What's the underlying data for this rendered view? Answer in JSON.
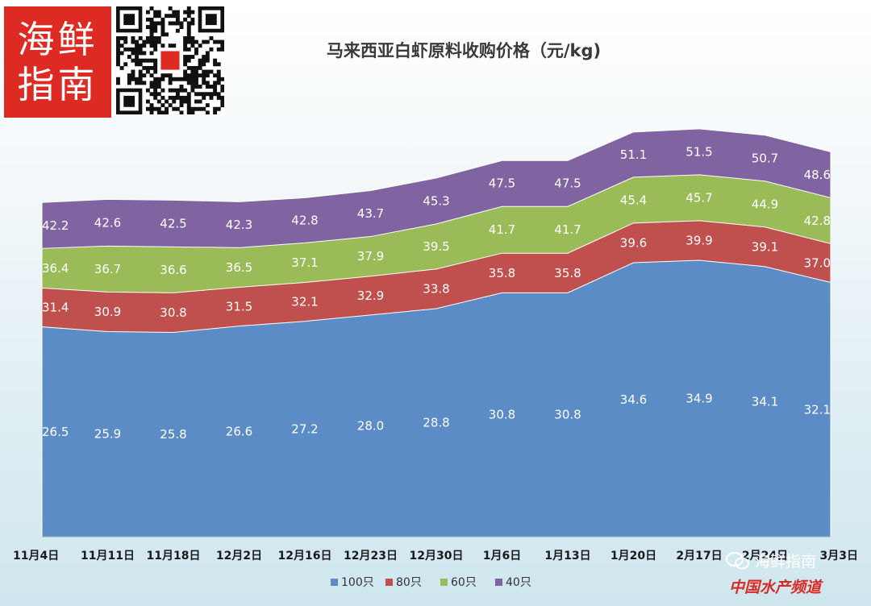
{
  "logo": {
    "line1": "海鲜",
    "line2": "指南"
  },
  "watermark": {
    "name": "海鲜指南",
    "sub": "中国水产频道"
  },
  "chart_data": {
    "type": "area",
    "stacked": false,
    "title": "马来西亚白虾原料收购价格（元/kg)",
    "xlabel": "",
    "ylabel": "",
    "legend_position": "bottom",
    "grid": false,
    "ylim": [
      0,
      52
    ],
    "categories": [
      "11月4日",
      "11月11日",
      "11月18日",
      "12月2日",
      "12月16日",
      "12月23日",
      "12月30日",
      "1月6日",
      "1月13日",
      "1月20日",
      "2月17日",
      "2月24日",
      "3月3日"
    ],
    "series": [
      {
        "name": "100只",
        "color": "#5b8cc6",
        "values": [
          26.5,
          25.9,
          25.8,
          26.6,
          27.2,
          28.0,
          28.8,
          30.8,
          30.8,
          34.6,
          34.9,
          34.1,
          32.1
        ]
      },
      {
        "name": "80只",
        "color": "#c0504d",
        "values": [
          31.4,
          30.9,
          30.8,
          31.5,
          32.1,
          32.9,
          33.8,
          35.8,
          35.8,
          39.6,
          39.9,
          39.1,
          37.0
        ]
      },
      {
        "name": "60只",
        "color": "#9bbb59",
        "values": [
          36.4,
          36.7,
          36.6,
          36.5,
          37.1,
          37.9,
          39.5,
          41.7,
          41.7,
          45.4,
          45.7,
          44.9,
          42.8
        ]
      },
      {
        "name": "40只",
        "color": "#8064a2",
        "values": [
          42.2,
          42.6,
          42.5,
          42.3,
          42.8,
          43.7,
          45.3,
          47.5,
          47.5,
          51.1,
          51.5,
          50.7,
          48.6
        ]
      }
    ]
  }
}
